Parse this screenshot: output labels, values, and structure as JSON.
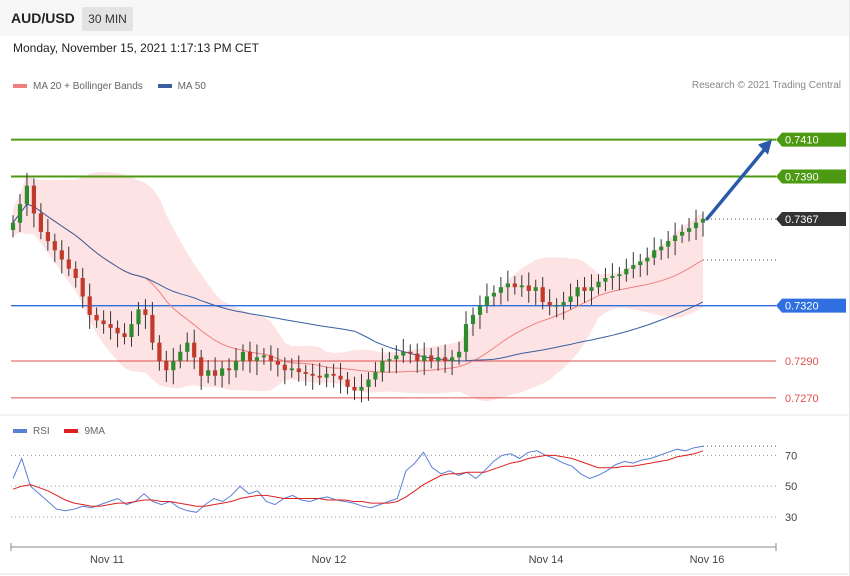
{
  "header": {
    "symbol": "AUD/USD",
    "timeframe": "30 MIN",
    "datetime": "Monday, November 15, 2021 1:17:13 PM CET"
  },
  "legend": {
    "items": [
      {
        "label": "MA 20 + Bollinger Bands",
        "color": "#f08080"
      },
      {
        "label": "MA 50",
        "color": "#3b5fa0"
      }
    ],
    "copyright": "Research © 2021 Trading Central"
  },
  "rsi_legend": {
    "items": [
      {
        "label": "RSI",
        "color": "#5b7fd6"
      },
      {
        "label": "9MA",
        "color": "#e02020"
      }
    ]
  },
  "colors": {
    "bull": "#2e8b2e",
    "bear": "#c0392b",
    "band_fill": "#fde0e0",
    "ma20": "#f08080",
    "ma50": "#3b5fa0",
    "green_level": "#4c9a12",
    "support": "#2f6fe0",
    "red_level": "#e05050",
    "last_price": "#333333",
    "arrow": "#2a5ba8",
    "rsi": "#5b7fd6",
    "rsi_ma": "#e02020"
  },
  "chart_data": [
    {
      "type": "candlestick",
      "title": "AUD/USD 30 MIN",
      "x_tick_labels": [
        "Nov 11",
        "Nov 12",
        "Nov 14",
        "Nov 16"
      ],
      "ylim": [
        0.7264,
        0.7432
      ],
      "levels": [
        {
          "value": 0.741,
          "label": "0.7410",
          "kind": "resistance"
        },
        {
          "value": 0.739,
          "label": "0.7390",
          "kind": "resistance"
        },
        {
          "value": 0.7367,
          "label": "0.7367",
          "kind": "last"
        },
        {
          "value": 0.732,
          "label": "0.7320",
          "kind": "support"
        },
        {
          "value": 0.729,
          "label": "0.7290",
          "kind": "support2"
        },
        {
          "value": 0.727,
          "label": "0.7270",
          "kind": "support3"
        }
      ],
      "projection": {
        "from": 0.7367,
        "to": 0.741
      },
      "candles_close": [
        0.7365,
        0.7375,
        0.7385,
        0.737,
        0.736,
        0.7355,
        0.735,
        0.7345,
        0.734,
        0.7335,
        0.7325,
        0.7315,
        0.7312,
        0.731,
        0.7308,
        0.7305,
        0.7303,
        0.731,
        0.7318,
        0.7315,
        0.73,
        0.729,
        0.7285,
        0.729,
        0.7295,
        0.73,
        0.7292,
        0.7282,
        0.7285,
        0.7282,
        0.7286,
        0.7285,
        0.729,
        0.7295,
        0.729,
        0.7292,
        0.7293,
        0.729,
        0.7288,
        0.7285,
        0.7286,
        0.7284,
        0.7283,
        0.7282,
        0.7281,
        0.7283,
        0.7282,
        0.728,
        0.7276,
        0.7274,
        0.7276,
        0.728,
        0.7284,
        0.729,
        0.7291,
        0.7293,
        0.7295,
        0.7294,
        0.729,
        0.7293,
        0.729,
        0.7292,
        0.729,
        0.7292,
        0.7295,
        0.731,
        0.7315,
        0.732,
        0.7325,
        0.7327,
        0.733,
        0.7332,
        0.733,
        0.7331,
        0.7328,
        0.733,
        0.7322,
        0.732,
        0.732,
        0.7322,
        0.7325,
        0.733,
        0.7328,
        0.733,
        0.7333,
        0.7335,
        0.7336,
        0.7337,
        0.734,
        0.7342,
        0.7344,
        0.7346,
        0.735,
        0.7352,
        0.7355,
        0.7358,
        0.736,
        0.7362,
        0.7365,
        0.7367
      ],
      "ma20_label": "MA 20 + Bollinger Bands",
      "ma50_label": "MA 50"
    },
    {
      "type": "line",
      "title": "RSI",
      "series": [
        {
          "name": "RSI",
          "values": [
            55,
            68,
            50,
            45,
            40,
            35,
            34,
            35,
            37,
            36,
            38,
            40,
            42,
            38,
            40,
            45,
            40,
            38,
            40,
            36,
            34,
            33,
            38,
            42,
            40,
            44,
            50,
            45,
            47,
            40,
            38,
            42,
            44,
            41,
            40,
            42,
            43,
            41,
            40,
            39,
            37,
            36,
            38,
            40,
            42,
            60,
            65,
            72,
            62,
            58,
            60,
            57,
            59,
            55,
            60,
            66,
            70,
            71,
            68,
            72,
            73,
            70,
            68,
            65,
            63,
            58,
            55,
            57,
            60,
            64,
            66,
            65,
            67,
            68,
            70,
            72,
            74,
            73,
            75,
            76
          ]
        },
        {
          "name": "9MA",
          "values": [
            48,
            50,
            51,
            49,
            47,
            44,
            41,
            39,
            38,
            37,
            37,
            38,
            39,
            39,
            40,
            41,
            41,
            40,
            40,
            39,
            38,
            37,
            37,
            38,
            39,
            40,
            42,
            43,
            44,
            44,
            43,
            42,
            42,
            42,
            42,
            42,
            41,
            41,
            41,
            40,
            40,
            39,
            39,
            39,
            40,
            43,
            47,
            51,
            54,
            57,
            58,
            58,
            59,
            59,
            59,
            61,
            63,
            65,
            66,
            68,
            69,
            70,
            70,
            69,
            68,
            66,
            64,
            62,
            62,
            62,
            63,
            63,
            64,
            65,
            66,
            67,
            69,
            70,
            71,
            73
          ]
        }
      ],
      "y_ticks": [
        "70",
        "50",
        "30"
      ],
      "ylim": [
        15,
        80
      ]
    }
  ]
}
